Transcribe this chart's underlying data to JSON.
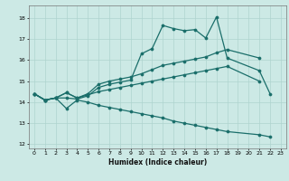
{
  "bg_color": "#cce9e5",
  "grid_color": "#aed4cf",
  "line_color": "#1a6e6a",
  "xlabel": "Humidex (Indice chaleur)",
  "xlim": [
    -0.5,
    23.5
  ],
  "ylim": [
    11.8,
    18.6
  ],
  "yticks": [
    12,
    13,
    14,
    15,
    16,
    17,
    18
  ],
  "xticks": [
    0,
    1,
    2,
    3,
    4,
    5,
    6,
    7,
    8,
    9,
    10,
    11,
    12,
    13,
    14,
    15,
    16,
    17,
    18,
    19,
    20,
    21,
    22,
    23
  ],
  "line1_x": [
    0,
    1,
    2,
    3,
    4,
    5,
    6,
    7,
    8,
    9,
    10,
    11,
    12,
    13,
    14,
    15,
    16,
    17,
    18,
    21,
    22
  ],
  "line1_y": [
    14.4,
    14.1,
    14.2,
    14.2,
    14.15,
    14.3,
    14.7,
    14.85,
    14.95,
    15.05,
    16.3,
    16.55,
    17.65,
    17.5,
    17.4,
    17.45,
    17.05,
    18.05,
    16.1,
    15.5,
    14.4
  ],
  "line2_x": [
    0,
    1,
    2,
    3,
    4,
    5,
    6,
    7,
    8,
    9,
    10,
    11,
    12,
    13,
    14,
    15,
    16,
    17,
    18,
    21
  ],
  "line2_y": [
    14.4,
    14.1,
    14.2,
    14.45,
    14.2,
    14.4,
    14.85,
    15.0,
    15.1,
    15.2,
    15.35,
    15.55,
    15.75,
    15.85,
    15.95,
    16.05,
    16.15,
    16.35,
    16.5,
    16.1
  ],
  "line3_x": [
    0,
    1,
    2,
    3,
    4,
    5,
    6,
    7,
    8,
    9,
    10,
    11,
    12,
    13,
    14,
    15,
    16,
    17,
    18,
    21
  ],
  "line3_y": [
    14.4,
    14.1,
    14.2,
    14.45,
    14.2,
    14.35,
    14.5,
    14.6,
    14.7,
    14.8,
    14.9,
    15.0,
    15.1,
    15.2,
    15.3,
    15.4,
    15.5,
    15.6,
    15.7,
    15.0
  ],
  "line4_x": [
    0,
    1,
    2,
    3,
    4,
    5,
    6,
    7,
    8,
    9,
    10,
    11,
    12,
    13,
    14,
    15,
    16,
    17,
    18,
    21,
    22
  ],
  "line4_y": [
    14.4,
    14.1,
    14.2,
    13.7,
    14.1,
    14.0,
    13.85,
    13.75,
    13.65,
    13.55,
    13.45,
    13.35,
    13.25,
    13.1,
    13.0,
    12.9,
    12.8,
    12.7,
    12.6,
    12.45,
    12.35
  ]
}
